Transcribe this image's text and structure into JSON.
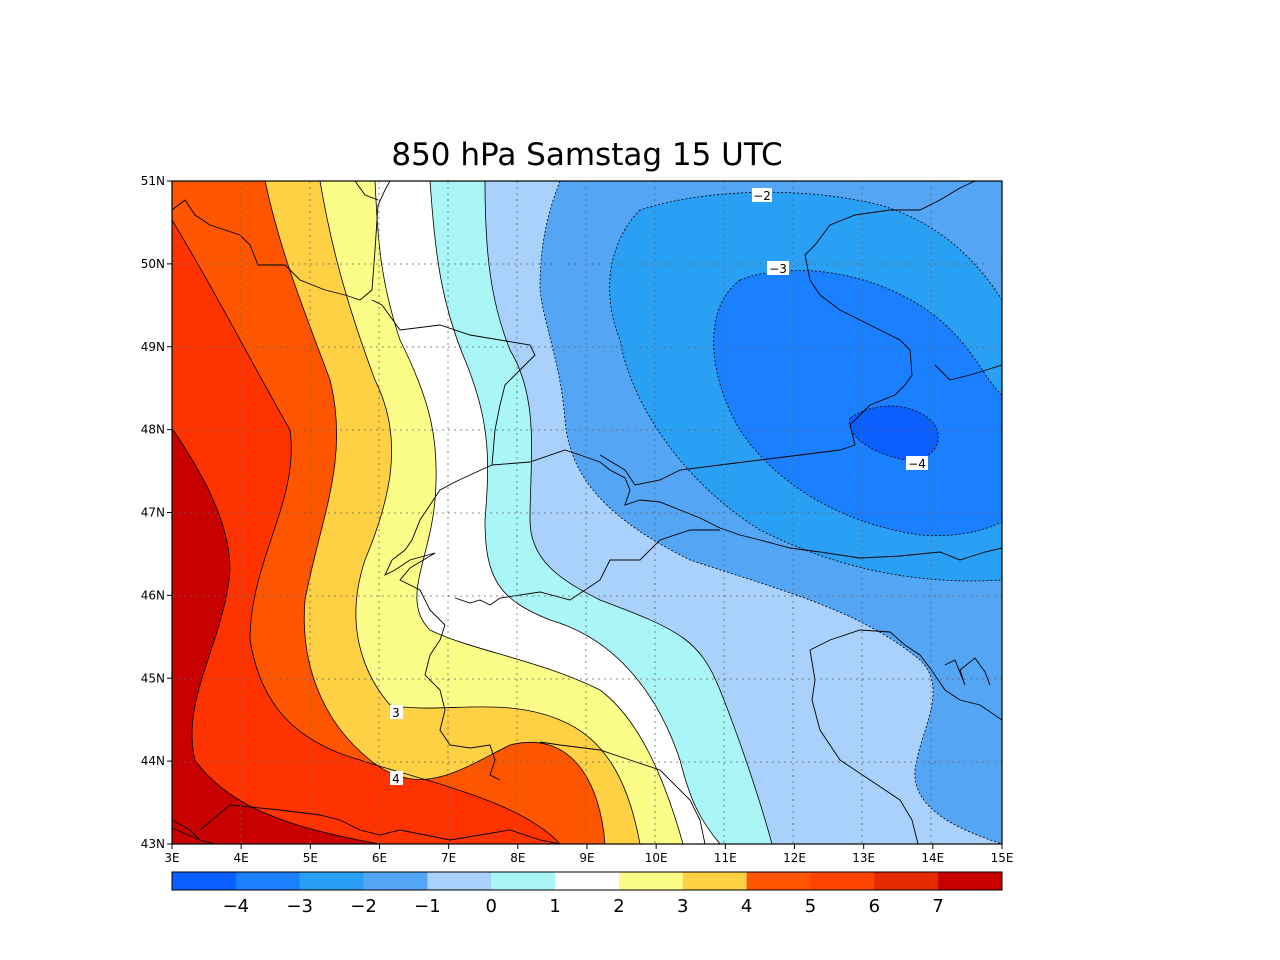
{
  "title": "850 hPa Samstag 15 UTC",
  "map": {
    "lon_range": [
      3,
      15
    ],
    "lat_range": [
      43,
      51
    ],
    "x_ticks": [
      "3E",
      "4E",
      "5E",
      "6E",
      "7E",
      "8E",
      "9E",
      "10E",
      "11E",
      "12E",
      "13E",
      "14E",
      "15E"
    ],
    "y_ticks": [
      "43N",
      "44N",
      "45N",
      "46N",
      "47N",
      "48N",
      "49N",
      "50N",
      "51N"
    ],
    "grid": true,
    "contour_labels": [
      "−2",
      "−3",
      "−4",
      "3",
      "4"
    ],
    "colorbar": {
      "colors": [
        "#0b5fff",
        "#1a80ff",
        "#2aa0f5",
        "#55a5f5",
        "#aad1fc",
        "#aaf5f5",
        "#ffffff",
        "#fcfc88",
        "#fed145",
        "#fe5500",
        "#fe4300",
        "#e62a00",
        "#c80000"
      ],
      "ticks": [
        "−4",
        "−3",
        "−2",
        "−1",
        "0",
        "1",
        "2",
        "3",
        "4",
        "5",
        "6",
        "7"
      ]
    }
  }
}
